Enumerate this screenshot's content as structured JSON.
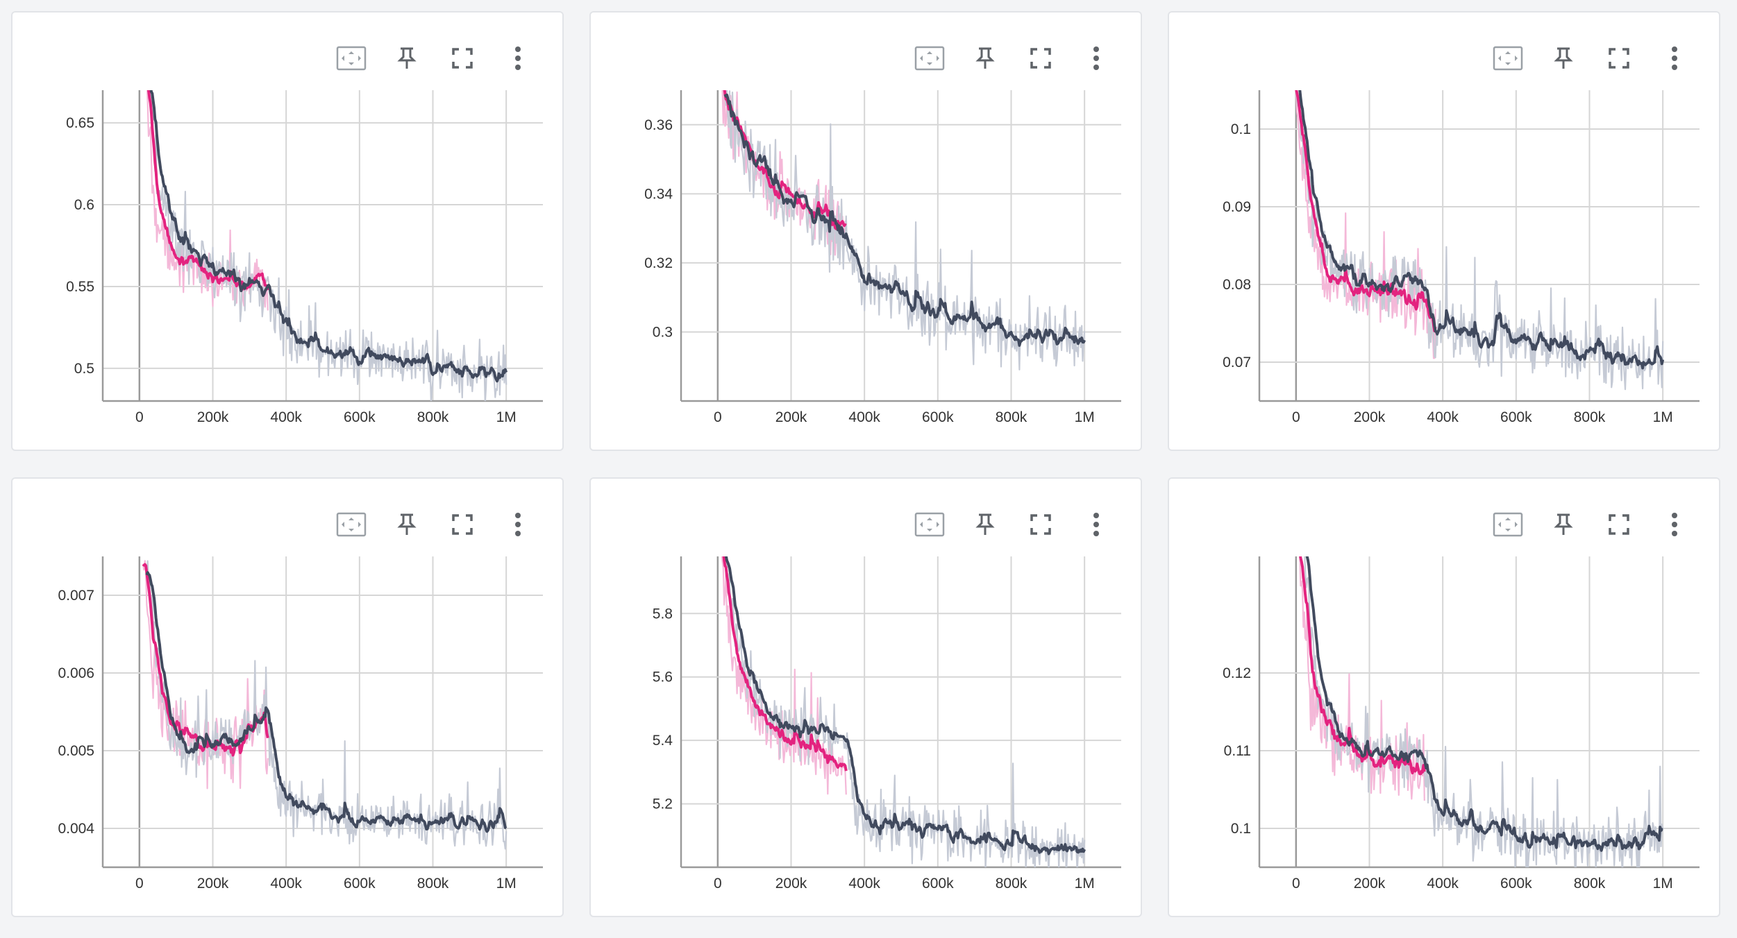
{
  "colors": {
    "background": "#f3f4f6",
    "card": "#ffffff",
    "grid": "#d6d6d6",
    "axis": "#9a9a9a",
    "icon": "#5f6368",
    "pink_raw": "#f4b8d8",
    "pink_smooth": "#e3237f",
    "gray_raw": "#c5cad5",
    "gray_smooth": "#414a5e"
  },
  "toolbar": {
    "icons": [
      "fit-domain-icon",
      "pin-icon",
      "fullscreen-icon",
      "more-vert-icon"
    ]
  },
  "chart_data": [
    {
      "type": "line",
      "title": "",
      "xlim": [
        -100000,
        1100000
      ],
      "ylim": [
        0.48,
        0.67
      ],
      "xticks": [
        0,
        200000,
        400000,
        600000,
        800000,
        1000000
      ],
      "xtick_labels": [
        "0",
        "200k",
        "400k",
        "600k",
        "800k",
        "1M"
      ],
      "yticks": [
        0.5,
        0.55,
        0.6,
        0.65
      ],
      "ytick_labels": [
        "0.5",
        "0.55",
        "0.6",
        "0.65"
      ],
      "series": [
        {
          "name": "pink run",
          "x_range": [
            20000,
            350000
          ],
          "points": [
            [
              20000,
              0.67
            ],
            [
              40000,
              0.6
            ],
            [
              70000,
              0.575
            ],
            [
              120000,
              0.565
            ],
            [
              200000,
              0.555
            ],
            [
              280000,
              0.55
            ],
            [
              340000,
              0.555
            ],
            [
              350000,
              0.54
            ]
          ],
          "noise": 0.022
        },
        {
          "name": "gray run",
          "x_range": [
            30000,
            1000000
          ],
          "points": [
            [
              30000,
              0.67
            ],
            [
              50000,
              0.61
            ],
            [
              100000,
              0.575
            ],
            [
              200000,
              0.56
            ],
            [
              300000,
              0.55
            ],
            [
              350000,
              0.545
            ],
            [
              380000,
              0.525
            ],
            [
              450000,
              0.515
            ],
            [
              600000,
              0.508
            ],
            [
              800000,
              0.5
            ],
            [
              1000000,
              0.495
            ]
          ],
          "noise": 0.025
        }
      ]
    },
    {
      "type": "line",
      "title": "",
      "xlim": [
        -100000,
        1100000
      ],
      "ylim": [
        0.28,
        0.37
      ],
      "xticks": [
        0,
        200000,
        400000,
        600000,
        800000,
        1000000
      ],
      "xtick_labels": [
        "0",
        "200k",
        "400k",
        "600k",
        "800k",
        "1M"
      ],
      "yticks": [
        0.3,
        0.32,
        0.34,
        0.36
      ],
      "ytick_labels": [
        "0.3",
        "0.32",
        "0.34",
        "0.36"
      ],
      "series": [
        {
          "name": "pink run",
          "x_range": [
            10000,
            350000
          ],
          "points": [
            [
              10000,
              0.37
            ],
            [
              40000,
              0.36
            ],
            [
              100000,
              0.348
            ],
            [
              200000,
              0.338
            ],
            [
              300000,
              0.332
            ],
            [
              350000,
              0.33
            ]
          ],
          "noise": 0.012
        },
        {
          "name": "gray run",
          "x_range": [
            20000,
            1000000
          ],
          "points": [
            [
              20000,
              0.37
            ],
            [
              60000,
              0.355
            ],
            [
              150000,
              0.342
            ],
            [
              250000,
              0.335
            ],
            [
              350000,
              0.328
            ],
            [
              400000,
              0.315
            ],
            [
              500000,
              0.31
            ],
            [
              600000,
              0.305
            ],
            [
              800000,
              0.3
            ],
            [
              1000000,
              0.297
            ]
          ],
          "noise": 0.014
        }
      ]
    },
    {
      "type": "line",
      "title": "",
      "xlim": [
        -100000,
        1100000
      ],
      "ylim": [
        0.065,
        0.105
      ],
      "xticks": [
        0,
        200000,
        400000,
        600000,
        800000,
        1000000
      ],
      "xtick_labels": [
        "0",
        "200k",
        "400k",
        "600k",
        "800k",
        "1M"
      ],
      "yticks": [
        0.07,
        0.08,
        0.09,
        0.1
      ],
      "ytick_labels": [
        "0.07",
        "0.08",
        "0.09",
        "0.1"
      ],
      "series": [
        {
          "name": "pink run",
          "x_range": [
            0,
            380000
          ],
          "points": [
            [
              0,
              0.105
            ],
            [
              30000,
              0.09
            ],
            [
              60000,
              0.083
            ],
            [
              120000,
              0.08
            ],
            [
              200000,
              0.079
            ],
            [
              300000,
              0.079
            ],
            [
              350000,
              0.078
            ],
            [
              380000,
              0.073
            ]
          ],
          "noise": 0.006
        },
        {
          "name": "gray run",
          "x_range": [
            0,
            1000000
          ],
          "points": [
            [
              0,
              0.105
            ],
            [
              40000,
              0.09
            ],
            [
              80000,
              0.083
            ],
            [
              150000,
              0.081
            ],
            [
              250000,
              0.08
            ],
            [
              340000,
              0.081
            ],
            [
              370000,
              0.075
            ],
            [
              450000,
              0.073
            ],
            [
              540000,
              0.072
            ],
            [
              545000,
              0.081
            ],
            [
              560000,
              0.074
            ],
            [
              700000,
              0.072
            ],
            [
              850000,
              0.071
            ],
            [
              1000000,
              0.07
            ]
          ],
          "noise": 0.006
        }
      ]
    },
    {
      "type": "line",
      "title": "",
      "xlim": [
        -100000,
        1100000
      ],
      "ylim": [
        0.0035,
        0.0075
      ],
      "xticks": [
        0,
        200000,
        400000,
        600000,
        800000,
        1000000
      ],
      "xtick_labels": [
        "0",
        "200k",
        "400k",
        "600k",
        "800k",
        "1M"
      ],
      "yticks": [
        0.004,
        0.005,
        0.006,
        0.007
      ],
      "ytick_labels": [
        "0.004",
        "0.005",
        "0.006",
        "0.007"
      ],
      "series": [
        {
          "name": "pink run",
          "x_range": [
            10000,
            350000
          ],
          "points": [
            [
              10000,
              0.0075
            ],
            [
              40000,
              0.006
            ],
            [
              80000,
              0.0053
            ],
            [
              150000,
              0.005
            ],
            [
              250000,
              0.005
            ],
            [
              340000,
              0.0055
            ],
            [
              350000,
              0.0048
            ]
          ],
          "noise": 0.0006
        },
        {
          "name": "gray run",
          "x_range": [
            20000,
            1000000
          ],
          "points": [
            [
              20000,
              0.0075
            ],
            [
              60000,
              0.0056
            ],
            [
              120000,
              0.005
            ],
            [
              200000,
              0.0051
            ],
            [
              300000,
              0.0052
            ],
            [
              345000,
              0.0055
            ],
            [
              380000,
              0.0044
            ],
            [
              450000,
              0.0042
            ],
            [
              600000,
              0.0041
            ],
            [
              800000,
              0.0041
            ],
            [
              1000000,
              0.004
            ]
          ],
          "noise": 0.0005
        }
      ]
    },
    {
      "type": "line",
      "title": "",
      "xlim": [
        -100000,
        1100000
      ],
      "ylim": [
        5.0,
        5.98
      ],
      "xticks": [
        0,
        200000,
        400000,
        600000,
        800000,
        1000000
      ],
      "xtick_labels": [
        "0",
        "200k",
        "400k",
        "600k",
        "800k",
        "1M"
      ],
      "yticks": [
        5.2,
        5.4,
        5.6,
        5.8
      ],
      "ytick_labels": [
        "5.2",
        "5.4",
        "5.6",
        "5.8"
      ],
      "series": [
        {
          "name": "pink run",
          "x_range": [
            10000,
            350000
          ],
          "points": [
            [
              10000,
              5.98
            ],
            [
              40000,
              5.65
            ],
            [
              100000,
              5.5
            ],
            [
              200000,
              5.38
            ],
            [
              300000,
              5.35
            ],
            [
              350000,
              5.3
            ]
          ],
          "noise": 0.14
        },
        {
          "name": "gray run",
          "x_range": [
            20000,
            1000000
          ],
          "points": [
            [
              20000,
              5.98
            ],
            [
              60000,
              5.7
            ],
            [
              100000,
              5.55
            ],
            [
              150000,
              5.45
            ],
            [
              250000,
              5.4
            ],
            [
              350000,
              5.42
            ],
            [
              380000,
              5.15
            ],
            [
              500000,
              5.12
            ],
            [
              700000,
              5.08
            ],
            [
              850000,
              5.07
            ],
            [
              1000000,
              5.06
            ]
          ],
          "noise": 0.12
        }
      ]
    },
    {
      "type": "line",
      "title": "",
      "xlim": [
        -100000,
        1100000
      ],
      "ylim": [
        0.095,
        0.135
      ],
      "xticks": [
        0,
        200000,
        400000,
        600000,
        800000,
        1000000
      ],
      "xtick_labels": [
        "0",
        "200k",
        "400k",
        "600k",
        "800k",
        "1M"
      ],
      "yticks": [
        0.1,
        0.11,
        0.12
      ],
      "ytick_labels": [
        "0.1",
        "0.11",
        "0.12"
      ],
      "series": [
        {
          "name": "pink run",
          "x_range": [
            10000,
            350000
          ],
          "points": [
            [
              10000,
              0.135
            ],
            [
              40000,
              0.117
            ],
            [
              100000,
              0.111
            ],
            [
              200000,
              0.108
            ],
            [
              300000,
              0.108
            ],
            [
              350000,
              0.106
            ]
          ],
          "noise": 0.006
        },
        {
          "name": "gray run",
          "x_range": [
            20000,
            1000000
          ],
          "points": [
            [
              20000,
              0.135
            ],
            [
              60000,
              0.118
            ],
            [
              120000,
              0.112
            ],
            [
              200000,
              0.109
            ],
            [
              300000,
              0.109
            ],
            [
              345000,
              0.11
            ],
            [
              380000,
              0.102
            ],
            [
              500000,
              0.1
            ],
            [
              700000,
              0.0985
            ],
            [
              850000,
              0.098
            ],
            [
              1000000,
              0.0985
            ]
          ],
          "noise": 0.0055
        }
      ]
    }
  ]
}
